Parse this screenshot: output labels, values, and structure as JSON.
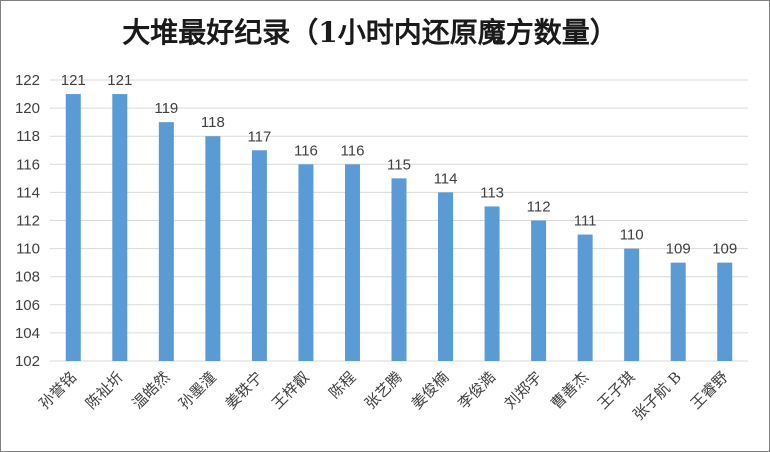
{
  "chart_data": {
    "type": "bar",
    "title": "大堆最好纪录（1小时内还原魔方数量）",
    "xlabel": "",
    "ylabel": "",
    "ylim": [
      102,
      122
    ],
    "yticks": [
      102,
      104,
      106,
      108,
      110,
      112,
      114,
      116,
      118,
      120,
      122
    ],
    "grid": true,
    "legend": "none",
    "bar_color": "#5b9bd5",
    "categories": [
      "孙誉铭",
      "陈祉圻",
      "温皓然",
      "孙墨潼",
      "姜轶宁",
      "王梓叡",
      "陈程",
      "张艺腾",
      "姜俊楠",
      "李俊澔",
      "刘郑宇",
      "曹善杰",
      "王子琪",
      "张子航 B",
      "王睿野"
    ],
    "values": [
      121,
      121,
      119,
      118,
      117,
      116,
      116,
      115,
      114,
      113,
      112,
      111,
      110,
      109,
      109
    ]
  }
}
